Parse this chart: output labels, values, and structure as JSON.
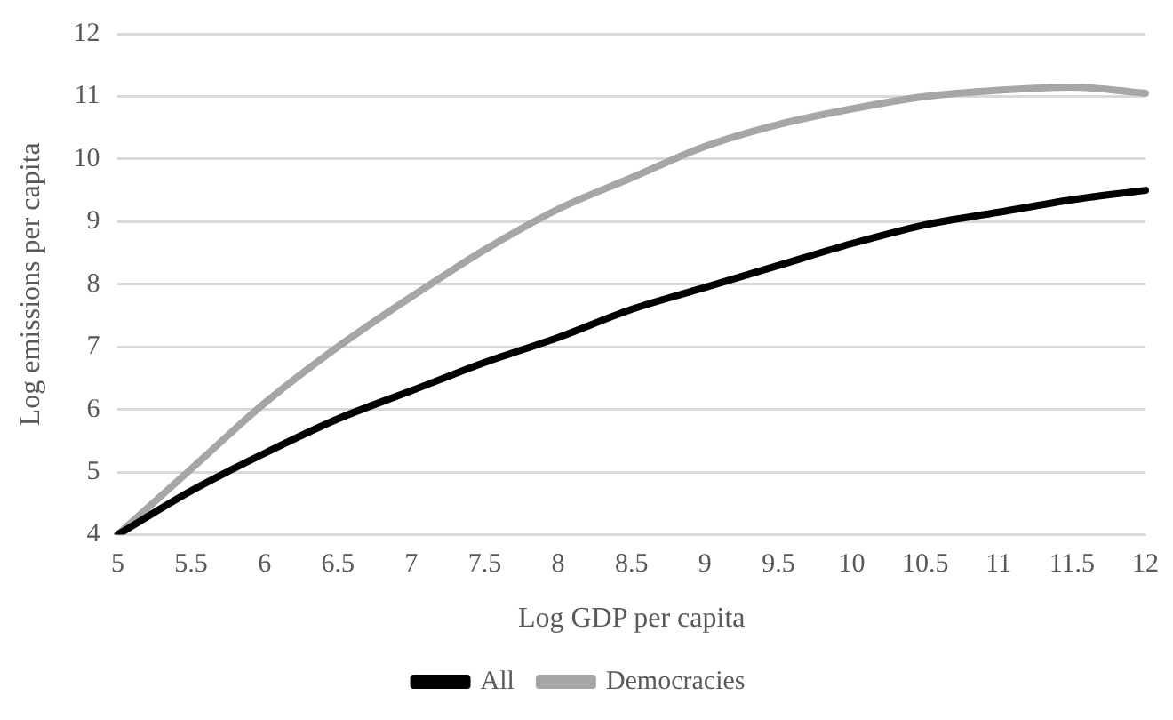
{
  "chart_data": {
    "type": "line",
    "xlabel": "Log GDP per capita",
    "ylabel": "Log emissions per capita",
    "categories": [
      "5",
      "5.5",
      "6",
      "6.5",
      "7",
      "7.5",
      "8",
      "8.5",
      "9",
      "9.5",
      "10",
      "10.5",
      "11",
      "11.5",
      "12"
    ],
    "series": [
      {
        "name": "All",
        "color": "#000000",
        "values": [
          4.0,
          4.7,
          5.3,
          5.85,
          6.3,
          6.75,
          7.15,
          7.6,
          7.95,
          8.3,
          8.65,
          8.95,
          9.15,
          9.35,
          9.5
        ]
      },
      {
        "name": "Democracies",
        "color": "#a6a6a6",
        "values": [
          4.0,
          5.05,
          6.1,
          7.0,
          7.8,
          8.55,
          9.2,
          9.7,
          10.2,
          10.55,
          10.8,
          11.0,
          11.1,
          11.15,
          11.05
        ]
      }
    ],
    "ylim": [
      4,
      12
    ],
    "yticks": [
      4,
      5,
      6,
      7,
      8,
      9,
      10,
      11,
      12
    ],
    "grid": "y",
    "legend": "bottom",
    "marker": "none",
    "line_style": "solid"
  }
}
